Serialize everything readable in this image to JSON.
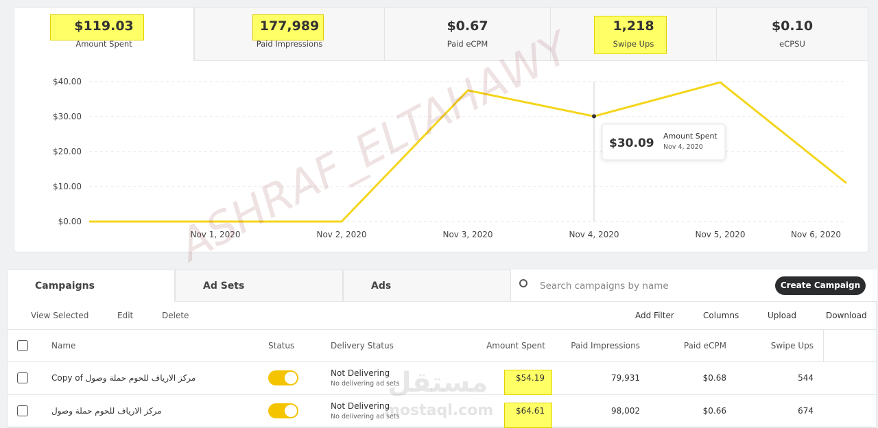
{
  "metrics": [
    {
      "value": "$119.03",
      "label": "Amount Spent"
    },
    {
      "value": "177,989",
      "label": "Paid Impressions"
    },
    {
      "value": "$0.67",
      "label": "Paid eCPM"
    },
    {
      "value": "1,218",
      "label": "Swipe Ups"
    },
    {
      "value": "$0.10",
      "label": "eCPSU"
    }
  ],
  "chart_data": {
    "type": "line",
    "categories": [
      null,
      "Nov 1, 2020",
      "Nov 2, 2020",
      "Nov 3, 2020",
      "Nov 4, 2020",
      "Nov 5, 2020",
      "Nov 6, 2020"
    ],
    "series": [
      {
        "name": "Amount Spent",
        "color": "#f5d51c",
        "values": [
          0,
          0,
          0,
          37.5,
          30.09,
          39.8,
          11
        ]
      }
    ],
    "ylim": [
      0,
      40
    ],
    "yticks": [
      {
        "value": 0,
        "label": "$0.00"
      },
      {
        "value": 10,
        "label": "$10.00"
      },
      {
        "value": 20,
        "label": "$20.00"
      },
      {
        "value": 30,
        "label": "$30.00"
      },
      {
        "value": 40,
        "label": "$40.00"
      }
    ],
    "grid": true,
    "tooltip": {
      "value_label": "$30.09",
      "series": "Amount Spent",
      "date": "Nov 4, 2020"
    }
  },
  "tabs": [
    "Campaigns",
    "Ad Sets",
    "Ads"
  ],
  "search_placeholder": "Search campaigns by name",
  "create_button": "Create Campaign",
  "toolbar_left": [
    "View Selected",
    "Edit",
    "Delete"
  ],
  "toolbar_right": [
    "Add Filter",
    "Columns",
    "Upload",
    "Download"
  ],
  "table": {
    "columns": [
      "Name",
      "Status",
      "Delivery Status",
      "Amount Spent",
      "Paid Impressions",
      "Paid eCPM",
      "Swipe Ups"
    ],
    "rows": [
      {
        "name": "Copy of مركز الارياف للحوم حملة وصول",
        "delivery": "Not Delivering",
        "delivery_note": "No delivering ad sets",
        "amount": "$54.19",
        "impressions": "79,931",
        "ecpm": "$0.68",
        "swipe_ups": "544"
      },
      {
        "name": "مركز الارياف للحوم حملة وصول",
        "delivery": "Not Delivering",
        "delivery_note": "No delivering ad sets",
        "amount": "$64.61",
        "impressions": "98,002",
        "ecpm": "$0.66",
        "swipe_ups": "674"
      }
    ]
  },
  "watermarks": [
    "ASHRAF_ELTAHAWY",
    "مستقل",
    "mostaql.com"
  ]
}
